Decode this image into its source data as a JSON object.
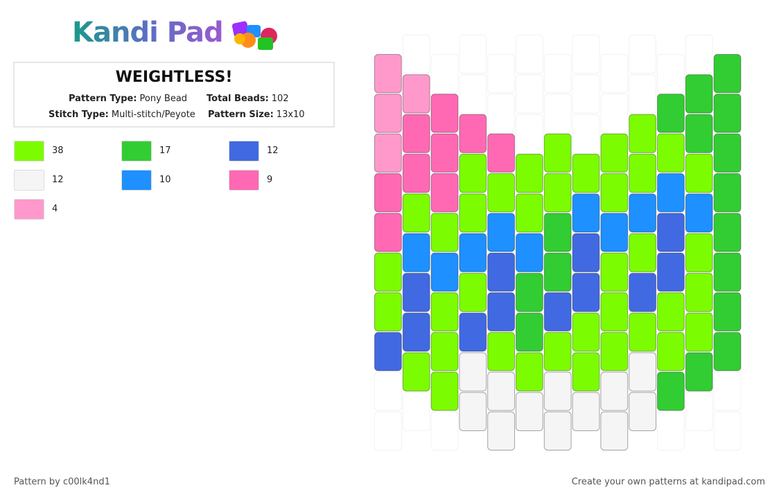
{
  "header": {
    "logo": "Kandi Pad"
  },
  "info": {
    "title": "WEIGHTLESS!",
    "fields": [
      {
        "label": "Pattern Type:",
        "value": "Pony Bead"
      },
      {
        "label": "Total Beads:",
        "value": "102"
      },
      {
        "label": "Stitch Type:",
        "value": "Multi-stitch/Peyote"
      },
      {
        "label": "Pattern Size:",
        "value": "13x10"
      }
    ]
  },
  "palette": [
    {
      "color": "#7cfc00",
      "count": 38
    },
    {
      "color": "#32cd32",
      "count": 17
    },
    {
      "color": "#4169e1",
      "count": 12
    },
    {
      "color": "#f5f5f5",
      "count": 12
    },
    {
      "color": "#1e90ff",
      "count": 10
    },
    {
      "color": "#ff69b4",
      "count": 9
    },
    {
      "color": "#ff99cc",
      "count": 4
    }
  ],
  "pattern": {
    "columns": [
      [
        6,
        6,
        6,
        5,
        5,
        0,
        0,
        2,
        null,
        null
      ],
      [
        null,
        6,
        5,
        5,
        0,
        4,
        2,
        2,
        0,
        null
      ],
      [
        null,
        5,
        5,
        5,
        0,
        4,
        0,
        0,
        0,
        null
      ],
      [
        null,
        null,
        5,
        0,
        0,
        4,
        0,
        2,
        3,
        3
      ],
      [
        null,
        null,
        5,
        0,
        4,
        2,
        2,
        0,
        3,
        3
      ],
      [
        null,
        null,
        null,
        0,
        0,
        4,
        1,
        1,
        0,
        3
      ],
      [
        null,
        null,
        0,
        0,
        1,
        1,
        2,
        0,
        3,
        3
      ],
      [
        null,
        null,
        null,
        0,
        4,
        2,
        2,
        0,
        0,
        3
      ],
      [
        null,
        null,
        0,
        0,
        4,
        0,
        0,
        0,
        3,
        3
      ],
      [
        null,
        null,
        0,
        0,
        4,
        0,
        2,
        0,
        3,
        3
      ],
      [
        null,
        1,
        0,
        4,
        2,
        2,
        0,
        0,
        1,
        null
      ],
      [
        null,
        1,
        1,
        0,
        4,
        0,
        0,
        0,
        1,
        null
      ],
      [
        1,
        1,
        1,
        1,
        1,
        1,
        1,
        1,
        null,
        null
      ]
    ]
  },
  "footer": {
    "left": "Pattern by c00lk4nd1",
    "right": "Create your own patterns at kandipad.com"
  }
}
